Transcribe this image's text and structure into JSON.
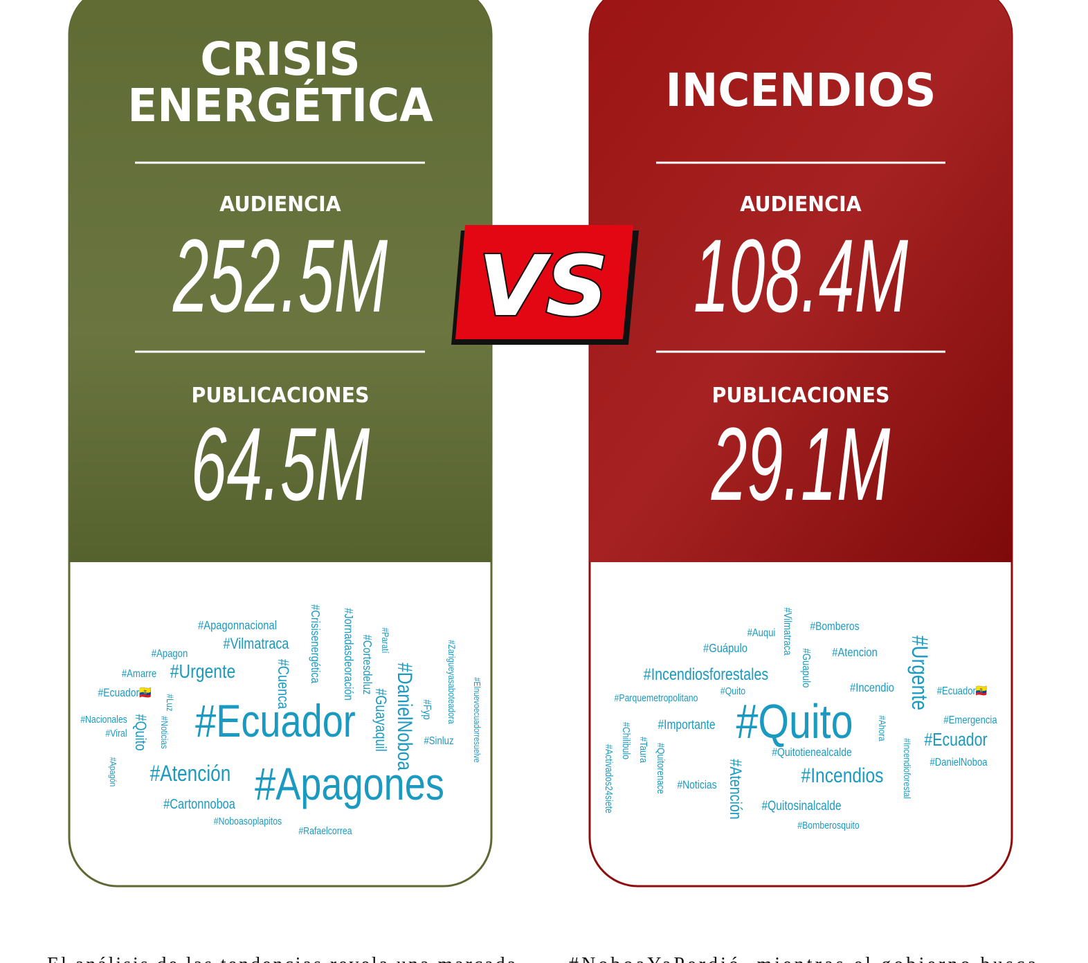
{
  "left_card": {
    "title_lines": [
      "CRISIS",
      "ENERGÉTICA"
    ],
    "audience_label": "AUDIENCIA",
    "audience": "252.5M",
    "posts_label": "PUBLICACIONES",
    "posts": "64.5M",
    "hashtags": [
      "#Apagonnacional",
      "#Vilmatraca",
      "#Apagon",
      "#Urgente",
      "#Amarre",
      "#Ecuador🇪🇨",
      "#Nacionales",
      "#Viral",
      "#Quito",
      "#Luz",
      "#Noticias",
      "#Apagón",
      "#Cuenca",
      "#Crisisenergética",
      "#Jornadasdeoración",
      "#Cortesdeluz",
      "#Paratí",
      "#Guayaquil",
      "#DanielNoboa",
      "#Fyp",
      "#Sinluz",
      "#Zarigueyasaboteadora",
      "#Elnuevoecuadorresuelve",
      "#Ecuador",
      "#Atención",
      "#Apagones",
      "#Cartonnoboa",
      "#Noboasoplapitos",
      "#Rafaelcorrea"
    ]
  },
  "vs": "VS",
  "right_card": {
    "title_lines": [
      "INCENDIOS"
    ],
    "audience_label": "AUDIENCIA",
    "audience": "108.4M",
    "posts_label": "PUBLICACIONES",
    "posts": "29.1M",
    "hashtags": [
      "#Vilmatraca",
      "#Bomberos",
      "#Auqui",
      "#Guápulo",
      "#Guapulo",
      "#Atencion",
      "#Urgente",
      "#Incendiosforestales",
      "#Incendio",
      "#Ecuador🇪🇨",
      "#Parquemetropolitano",
      "#Quito",
      "#Quito",
      "#Importante",
      "#Emergencia",
      "#Ahora",
      "#Incendioforestal",
      "#Ecuador",
      "#DanielNoboa",
      "#Chilibulo",
      "#Taura",
      "#Quitorenace",
      "#Activados24siete",
      "#Quitotienealcalde",
      "#Atención",
      "#Noticias",
      "#Incendios",
      "#Quitosinalcalde",
      "#Bomberosquito"
    ]
  },
  "body_text": [
    "El análisis de las tendencias revela una marcada",
    "#NoboaYaPerdió, mientras el gobierno busca"
  ]
}
